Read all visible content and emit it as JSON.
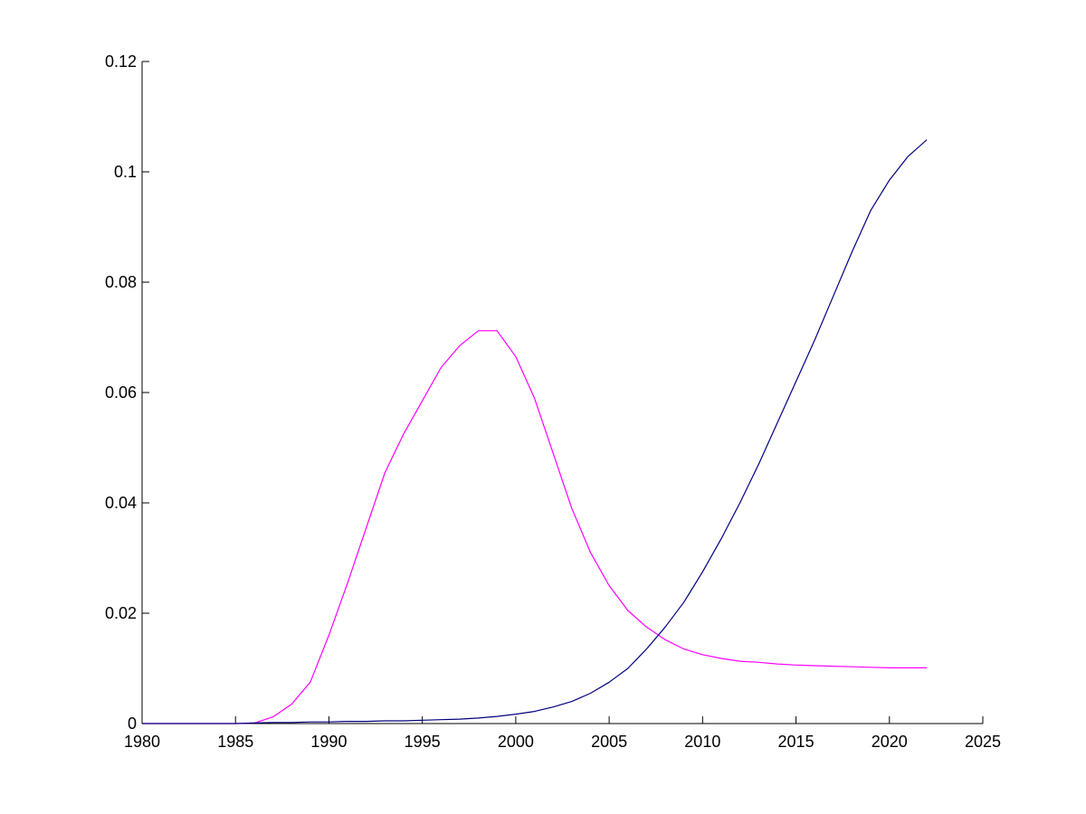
{
  "chart_data": {
    "type": "line",
    "title": "",
    "xlabel": "",
    "ylabel": "",
    "xlim": [
      1980,
      2025
    ],
    "ylim": [
      0,
      0.12
    ],
    "grid": false,
    "legend": "none",
    "x_ticks": [
      "1980",
      "1985",
      "1990",
      "1995",
      "2000",
      "2005",
      "2010",
      "2015",
      "2020",
      "2025"
    ],
    "y_ticks": [
      "0",
      "0.02",
      "0.04",
      "0.06",
      "0.08",
      "0.1",
      "0.12"
    ],
    "series": [
      {
        "color": "#ff00ff",
        "x": [
          1980,
          1981,
          1982,
          1983,
          1984,
          1985,
          1986,
          1987,
          1988,
          1989,
          1990,
          1991,
          1992,
          1993,
          1994,
          1995,
          1996,
          1997,
          1998,
          1999,
          2000,
          2001,
          2002,
          2003,
          2004,
          2005,
          2006,
          2007,
          2008,
          2009,
          2010,
          2011,
          2012,
          2013,
          2014,
          2015,
          2016,
          2017,
          2018,
          2019,
          2020,
          2021,
          2022
        ],
        "y": [
          0,
          0,
          0,
          0,
          0,
          0,
          0.0001,
          0.0012,
          0.0035,
          0.0075,
          0.016,
          0.0255,
          0.0355,
          0.0455,
          0.0525,
          0.0585,
          0.0645,
          0.0685,
          0.0712,
          0.0712,
          0.0665,
          0.059,
          0.049,
          0.039,
          0.031,
          0.025,
          0.0205,
          0.0175,
          0.0152,
          0.0135,
          0.0125,
          0.0118,
          0.0113,
          0.0111,
          0.0108,
          0.0106,
          0.0105,
          0.0104,
          0.0103,
          0.0102,
          0.0101,
          0.0101,
          0.0101
        ]
      },
      {
        "color": "#00007f",
        "x": [
          1980,
          1981,
          1982,
          1983,
          1984,
          1985,
          1986,
          1987,
          1988,
          1989,
          1990,
          1991,
          1992,
          1993,
          1994,
          1995,
          1996,
          1997,
          1998,
          1999,
          2000,
          2001,
          2002,
          2003,
          2004,
          2005,
          2006,
          2007,
          2008,
          2009,
          2010,
          2011,
          2012,
          2013,
          2014,
          2015,
          2016,
          2017,
          2018,
          2019,
          2020,
          2021,
          2022
        ],
        "y": [
          0,
          0,
          0,
          0,
          0,
          0,
          0.0001,
          0.0002,
          0.0002,
          0.0003,
          0.0003,
          0.0004,
          0.0004,
          0.0005,
          0.0005,
          0.0006,
          0.0007,
          0.0008,
          0.001,
          0.0013,
          0.0017,
          0.0022,
          0.003,
          0.004,
          0.0055,
          0.0075,
          0.01,
          0.0135,
          0.0175,
          0.022,
          0.0275,
          0.0335,
          0.04,
          0.047,
          0.0545,
          0.062,
          0.0695,
          0.0775,
          0.0855,
          0.093,
          0.0985,
          0.1028,
          0.1058
        ]
      }
    ]
  }
}
